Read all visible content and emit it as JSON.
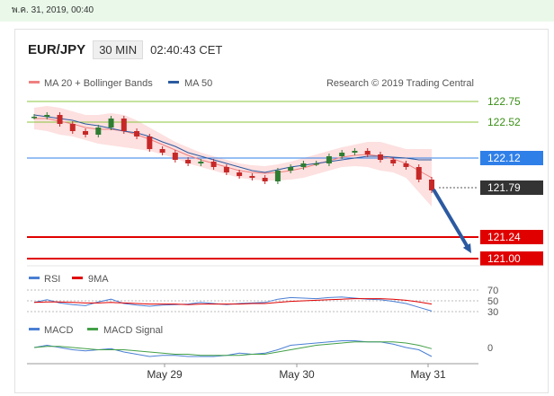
{
  "date_bar": "พ.ค. 31, 2019, 00:40",
  "header": {
    "symbol": "EUR/JPY",
    "timeframe": "30 MIN",
    "time": "02:40:43 CET"
  },
  "legend": {
    "ma20_label": "MA 20 + Bollinger Bands",
    "ma20_color": "#f08080",
    "ma50_label": "MA 50",
    "ma50_color": "#2c5aa0"
  },
  "credit": "Research © 2019 Trading Central",
  "chart_data": [
    {
      "type": "line",
      "name": "price",
      "x": [
        "May 28 12:00",
        "May 28 14:00",
        "May 28 16:00",
        "May 28 18:00",
        "May 28 20:00",
        "May 28 22:00",
        "May 29 00:00",
        "May 29 02:00",
        "May 29 04:00",
        "May 29 06:00",
        "May 29 08:00",
        "May 29 10:00",
        "May 29 12:00",
        "May 29 14:00",
        "May 29 16:00",
        "May 29 18:00",
        "May 29 20:00",
        "May 29 22:00",
        "May 30 00:00",
        "May 30 02:00",
        "May 30 04:00",
        "May 30 06:00",
        "May 30 08:00",
        "May 30 10:00",
        "May 30 12:00",
        "May 30 14:00",
        "May 30 16:00",
        "May 30 18:00",
        "May 30 20:00",
        "May 30 22:00",
        "May 31 00:00",
        "May 31 02:00"
      ],
      "series": [
        {
          "name": "Price",
          "values": [
            122.58,
            122.6,
            122.5,
            122.42,
            122.38,
            122.46,
            122.56,
            122.42,
            122.36,
            122.22,
            122.18,
            122.1,
            122.06,
            122.08,
            122.02,
            121.96,
            121.92,
            121.9,
            121.86,
            121.98,
            122.02,
            122.06,
            122.06,
            122.14,
            122.18,
            122.2,
            122.16,
            122.1,
            122.06,
            122.02,
            121.88,
            121.76
          ]
        },
        {
          "name": "MA 20",
          "values": [
            122.56,
            122.56,
            122.53,
            122.5,
            122.46,
            122.44,
            122.44,
            122.42,
            122.38,
            122.33,
            122.27,
            122.21,
            122.15,
            122.1,
            122.06,
            122.02,
            121.98,
            121.96,
            121.95,
            121.96,
            121.98,
            122.01,
            122.05,
            122.09,
            122.13,
            122.15,
            122.16,
            122.14,
            122.11,
            122.06,
            121.98,
            121.9
          ]
        },
        {
          "name": "MA 50",
          "values": [
            122.6,
            122.58,
            122.56,
            122.54,
            122.5,
            122.48,
            122.45,
            122.42,
            122.4,
            122.36,
            122.3,
            122.25,
            122.18,
            122.14,
            122.1,
            122.06,
            122.02,
            121.98,
            121.96,
            121.99,
            122.02,
            122.04,
            122.06,
            122.08,
            122.1,
            122.12,
            122.14,
            122.14,
            122.13,
            122.12,
            122.1,
            122.1
          ]
        },
        {
          "name": "Upper band",
          "values": [
            122.68,
            122.7,
            122.68,
            122.64,
            122.6,
            122.6,
            122.62,
            122.6,
            122.54,
            122.46,
            122.38,
            122.3,
            122.24,
            122.18,
            122.14,
            122.1,
            122.06,
            122.04,
            122.03,
            122.05,
            122.08,
            122.12,
            122.16,
            122.2,
            122.24,
            122.27,
            122.3,
            122.3,
            122.26,
            122.22,
            122.22,
            122.22
          ]
        },
        {
          "name": "Lower band",
          "values": [
            122.44,
            122.42,
            122.38,
            122.36,
            122.32,
            122.28,
            122.26,
            122.24,
            122.22,
            122.2,
            122.16,
            122.12,
            122.06,
            122.02,
            121.98,
            121.94,
            121.9,
            121.88,
            121.87,
            121.87,
            121.88,
            121.9,
            121.94,
            121.98,
            122.02,
            122.03,
            122.02,
            121.98,
            121.96,
            121.9,
            121.74,
            121.58
          ]
        }
      ],
      "ylim": [
        120.93,
        122.83
      ],
      "levels": [
        {
          "value": 122.75,
          "label": "122.75",
          "style": "resistance"
        },
        {
          "value": 122.52,
          "label": "122.52",
          "style": "resistance"
        },
        {
          "value": 122.12,
          "label": "122.12",
          "style": "pivot"
        },
        {
          "value": 121.79,
          "label": "121.79",
          "style": "last"
        },
        {
          "value": 121.24,
          "label": "121.24",
          "style": "support"
        },
        {
          "value": 121.0,
          "label": "121.00",
          "style": "support"
        }
      ],
      "forecast_arrow": {
        "from": 121.79,
        "to": 121.0
      },
      "colors": {
        "resistance": "#8cc63f",
        "resistance_text": "#3a8f16",
        "pivot": "#2f7fe8",
        "last": "#333333",
        "support": "#e00000",
        "up_candle": "#2e7d32",
        "down_candle": "#c62828",
        "arrow": "#2b5aa1",
        "band_fill": "#fde0e0"
      }
    },
    {
      "type": "line",
      "name": "RSI",
      "legend": [
        {
          "label": "RSI",
          "color": "#4a7fd4"
        },
        {
          "label": "9MA",
          "color": "#e00000"
        }
      ],
      "ylim": [
        25,
        75
      ],
      "ticks": [
        {
          "value": 70,
          "label": "70"
        },
        {
          "value": 50,
          "label": "50"
        },
        {
          "value": 30,
          "label": "30"
        }
      ],
      "series": [
        {
          "name": "RSI",
          "values": [
            47,
            52,
            46,
            43,
            41,
            48,
            53,
            45,
            42,
            40,
            42,
            43,
            44,
            47,
            45,
            43,
            45,
            46,
            47,
            53,
            56,
            55,
            54,
            56,
            57,
            55,
            53,
            52,
            49,
            45,
            38,
            31
          ]
        },
        {
          "name": "9MA",
          "values": [
            47,
            48,
            48,
            47,
            46,
            46,
            47,
            46,
            45,
            44,
            44,
            44,
            43,
            44,
            44,
            44,
            44,
            45,
            45,
            47,
            49,
            50,
            51,
            52,
            53,
            54,
            54,
            54,
            53,
            51,
            48,
            44
          ]
        }
      ]
    },
    {
      "type": "line",
      "name": "MACD",
      "legend": [
        {
          "label": "MACD",
          "color": "#4a7fd4"
        },
        {
          "label": "MACD Signal",
          "color": "#43a047"
        }
      ],
      "ylim": [
        -0.12,
        0.12
      ],
      "ticks": [
        {
          "value": 0,
          "label": "0"
        }
      ],
      "series": [
        {
          "name": "MACD",
          "values": [
            0.0,
            0.02,
            0.0,
            -0.02,
            -0.03,
            -0.02,
            -0.01,
            -0.04,
            -0.06,
            -0.08,
            -0.07,
            -0.07,
            -0.08,
            -0.08,
            -0.08,
            -0.07,
            -0.05,
            -0.06,
            -0.05,
            -0.02,
            0.02,
            0.03,
            0.04,
            0.05,
            0.06,
            0.06,
            0.05,
            0.05,
            0.03,
            0.0,
            -0.02,
            -0.08
          ]
        },
        {
          "name": "MACD Signal",
          "values": [
            0.0,
            0.01,
            0.01,
            0.0,
            -0.01,
            -0.02,
            -0.02,
            -0.02,
            -0.03,
            -0.04,
            -0.05,
            -0.06,
            -0.06,
            -0.07,
            -0.07,
            -0.07,
            -0.07,
            -0.06,
            -0.06,
            -0.04,
            -0.02,
            0.0,
            0.02,
            0.03,
            0.04,
            0.05,
            0.05,
            0.05,
            0.05,
            0.04,
            0.02,
            -0.01
          ]
        }
      ]
    }
  ],
  "x_axis": {
    "ticks": [
      "May 29",
      "May 30",
      "May 31"
    ]
  }
}
